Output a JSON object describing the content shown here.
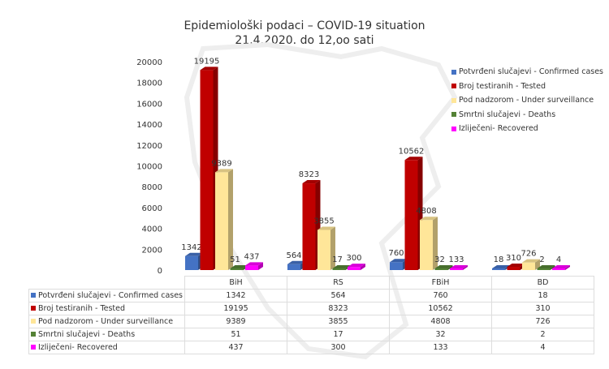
{
  "chart_data": {
    "type": "bar",
    "title": "Epidemiološki podaci – COVID-19 situation",
    "subtitle": "21.4.2020. do 12,oo sati",
    "categories": [
      "BiH",
      "RS",
      "FBiH",
      "BD"
    ],
    "series": [
      {
        "name": "Potvrđeni slučajevi - Confirmed cases",
        "color": "#4472C4",
        "values": [
          1342,
          564,
          760,
          18
        ]
      },
      {
        "name": "Broj testiranih - Tested",
        "color": "#C00000",
        "values": [
          19195,
          8323,
          10562,
          310
        ]
      },
      {
        "name": "Pod nadzorom - Under surveillance",
        "color": "#FFE699",
        "values": [
          9389,
          3855,
          4808,
          726
        ]
      },
      {
        "name": "Smrtni slučajevi - Deaths",
        "color": "#548235",
        "values": [
          51,
          17,
          32,
          2
        ]
      },
      {
        "name": "Izliječeni- Recovered",
        "color": "#FF00FF",
        "values": [
          437,
          300,
          133,
          4
        ]
      }
    ],
    "ylim": [
      0,
      20000
    ],
    "yticks": [
      "0",
      "2000",
      "4000",
      "6000",
      "8000",
      "10000",
      "12000",
      "14000",
      "16000",
      "18000",
      "20000"
    ],
    "legend": "right",
    "grid": false,
    "data_table": true
  }
}
